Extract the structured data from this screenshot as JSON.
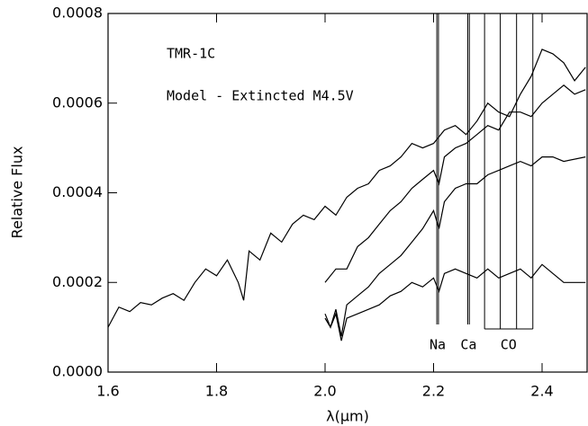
{
  "chart_data": {
    "type": "line",
    "annotations": [
      "TMR-1C",
      "Model - Extincted M4.5V"
    ],
    "xlabel": "λ(μm)",
    "ylabel": "Relative Flux",
    "xlim": [
      1.6,
      2.483
    ],
    "ylim": [
      0,
      0.0008
    ],
    "xticks": [
      1.6,
      1.8,
      {
        "value": 2,
        "label": "2.0"
      },
      2.2,
      2.4
    ],
    "yticks": [
      {
        "value": 0,
        "label": "0.0000"
      },
      {
        "value": 0.0002,
        "label": "0.0002"
      },
      {
        "value": 0.0004,
        "label": "0.0004"
      },
      {
        "value": 0.0006,
        "label": "0.0006"
      },
      {
        "value": 0.0008,
        "label": "0.0008"
      }
    ],
    "lines": [
      {
        "label": "Na",
        "x": [
          2.206,
          2.209
        ]
      },
      {
        "label": "Ca",
        "x": [
          2.263,
          2.266
        ]
      },
      {
        "label": "CO",
        "x": [
          2.294,
          2.323,
          2.353,
          2.383
        ]
      }
    ],
    "series": [
      {
        "color": "#000000",
        "x": [
          1.6,
          1.62,
          1.64,
          1.66,
          1.68,
          1.7,
          1.72,
          1.74,
          1.76,
          1.78,
          1.8,
          1.82,
          1.84,
          1.85,
          1.86,
          1.88,
          1.9,
          1.92,
          1.94,
          1.96,
          1.98,
          2.0,
          2.02,
          2.04,
          2.06,
          2.08,
          2.1,
          2.12,
          2.14,
          2.16,
          2.18,
          2.2,
          2.22,
          2.24,
          2.26,
          2.28,
          2.3,
          2.32,
          2.34,
          2.36,
          2.38,
          2.4,
          2.42,
          2.44,
          2.46,
          2.48
        ],
        "values": [
          0.0001,
          0.000145,
          0.000135,
          0.000155,
          0.00015,
          0.000165,
          0.000175,
          0.00016,
          0.0002,
          0.00023,
          0.000215,
          0.00025,
          0.0002,
          0.00016,
          0.00027,
          0.00025,
          0.00031,
          0.00029,
          0.00033,
          0.00035,
          0.00034,
          0.00037,
          0.00035,
          0.00039,
          0.00041,
          0.00042,
          0.00045,
          0.00046,
          0.00048,
          0.00051,
          0.0005,
          0.00051,
          0.00054,
          0.00055,
          0.00053,
          0.00056,
          0.0006,
          0.00058,
          0.00057,
          0.00062,
          0.00066,
          0.00072,
          0.00071,
          0.00069,
          0.00065,
          0.00068
        ]
      },
      {
        "color": "#000000",
        "x": [
          2.0,
          2.02,
          2.04,
          2.06,
          2.08,
          2.1,
          2.12,
          2.14,
          2.16,
          2.18,
          2.2,
          2.21,
          2.22,
          2.24,
          2.26,
          2.28,
          2.3,
          2.32,
          2.34,
          2.36,
          2.38,
          2.4,
          2.42,
          2.44,
          2.46,
          2.48
        ],
        "values": [
          0.0002,
          0.00023,
          0.00023,
          0.00028,
          0.0003,
          0.00033,
          0.00036,
          0.00038,
          0.00041,
          0.00043,
          0.00045,
          0.00042,
          0.00048,
          0.0005,
          0.00051,
          0.00053,
          0.00055,
          0.00054,
          0.00058,
          0.00058,
          0.00057,
          0.0006,
          0.00062,
          0.00064,
          0.00062,
          0.00063
        ]
      },
      {
        "color": "#000000",
        "x": [
          2.0,
          2.01,
          2.02,
          2.03,
          2.04,
          2.06,
          2.08,
          2.1,
          2.12,
          2.14,
          2.16,
          2.18,
          2.2,
          2.21,
          2.22,
          2.24,
          2.26,
          2.28,
          2.3,
          2.32,
          2.34,
          2.36,
          2.38,
          2.4,
          2.42,
          2.44,
          2.48
        ],
        "values": [
          0.00013,
          0.0001,
          0.00014,
          8e-05,
          0.00015,
          0.00017,
          0.00019,
          0.00022,
          0.00024,
          0.00026,
          0.00029,
          0.00032,
          0.00036,
          0.00032,
          0.00038,
          0.00041,
          0.00042,
          0.00042,
          0.00044,
          0.00045,
          0.00046,
          0.00047,
          0.00046,
          0.00048,
          0.00048,
          0.00047,
          0.00048
        ]
      },
      {
        "color": "#000000",
        "x": [
          2.0,
          2.01,
          2.02,
          2.03,
          2.04,
          2.06,
          2.08,
          2.1,
          2.12,
          2.14,
          2.16,
          2.18,
          2.2,
          2.21,
          2.22,
          2.24,
          2.26,
          2.28,
          2.3,
          2.32,
          2.34,
          2.36,
          2.38,
          2.4,
          2.42,
          2.44,
          2.48
        ],
        "values": [
          0.00012,
          0.0001,
          0.00013,
          7e-05,
          0.00012,
          0.00013,
          0.00014,
          0.00015,
          0.00017,
          0.00018,
          0.0002,
          0.00019,
          0.00021,
          0.00018,
          0.00022,
          0.00023,
          0.00022,
          0.00021,
          0.00023,
          0.00021,
          0.00022,
          0.00023,
          0.00021,
          0.00024,
          0.00022,
          0.0002,
          0.0002
        ]
      }
    ]
  }
}
